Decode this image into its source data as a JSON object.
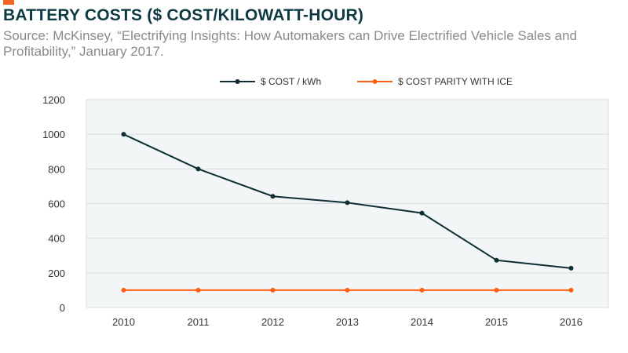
{
  "header": {
    "title": "BATTERY COSTS ($ COST/KILOWATT-HOUR)",
    "subtitle": "Source: McKinsey, “Electrifying Insights: How Automakers can Drive Electrified Vehicle Sales and Profitability,” January 2017."
  },
  "colors": {
    "accent": "#f26522",
    "cost": "#0e2f33",
    "parity": "#ff5f0f",
    "plot_bg": "#f2f6f7",
    "grid": "#d9dcdd"
  },
  "chart_data": {
    "type": "line",
    "categories": [
      "2010",
      "2011",
      "2012",
      "2013",
      "2014",
      "2015",
      "2016"
    ],
    "series": [
      {
        "name": "$ COST / kWh",
        "values": [
          1000,
          800,
          642,
          605,
          545,
          273,
          227
        ]
      },
      {
        "name": "$ COST PARITY WITH ICE",
        "values": [
          100,
          100,
          100,
          100,
          100,
          100,
          100
        ]
      }
    ],
    "yticks": [
      "0",
      "200",
      "400",
      "600",
      "800",
      "1000",
      "1200"
    ],
    "ylim": [
      0,
      1200
    ],
    "grid": true,
    "legend": "top-center"
  }
}
